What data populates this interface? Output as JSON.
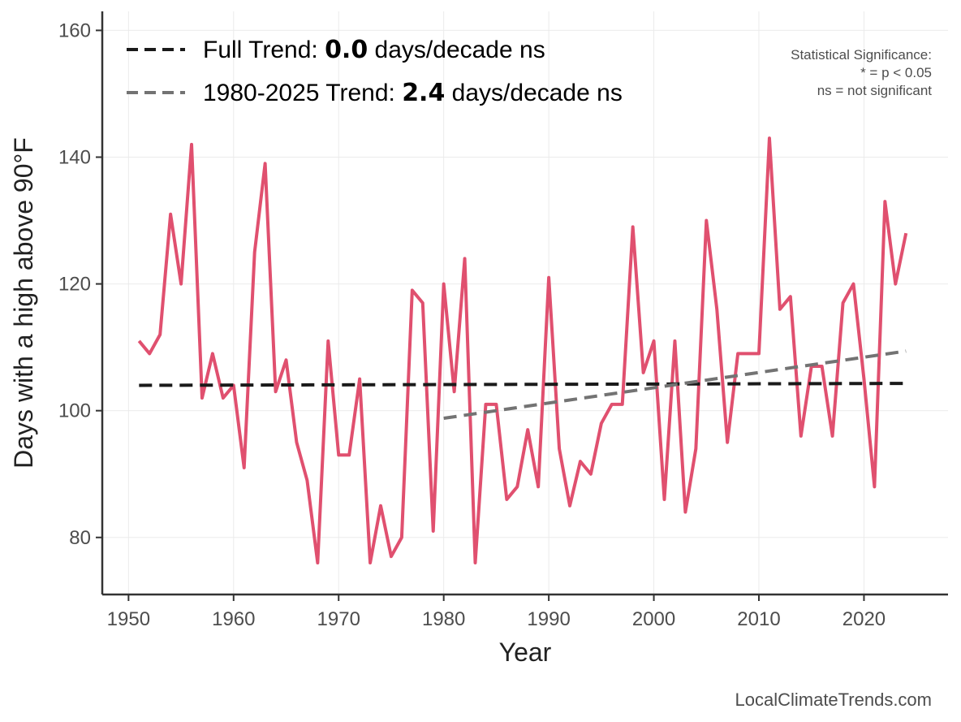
{
  "chart_data": {
    "type": "line",
    "title": "",
    "xlabel": "Year",
    "ylabel": "Days with a high above 90°F",
    "xlim": [
      1947.5,
      2028
    ],
    "ylim": [
      71,
      163
    ],
    "x_ticks": [
      1950,
      1960,
      1970,
      1980,
      1990,
      2000,
      2010,
      2020
    ],
    "y_ticks": [
      80,
      100,
      120,
      140,
      160
    ],
    "grid": true,
    "series": [
      {
        "name": "Days with a high above 90°F",
        "color": "#e0506f",
        "x": [
          1951,
          1952,
          1953,
          1954,
          1955,
          1956,
          1957,
          1958,
          1959,
          1960,
          1961,
          1962,
          1963,
          1964,
          1965,
          1966,
          1967,
          1968,
          1969,
          1970,
          1971,
          1972,
          1973,
          1974,
          1975,
          1976,
          1977,
          1978,
          1979,
          1980,
          1981,
          1982,
          1983,
          1984,
          1985,
          1986,
          1987,
          1988,
          1989,
          1990,
          1991,
          1992,
          1993,
          1994,
          1995,
          1996,
          1997,
          1998,
          1999,
          2000,
          2001,
          2002,
          2003,
          2004,
          2005,
          2006,
          2007,
          2008,
          2009,
          2010,
          2011,
          2012,
          2013,
          2014,
          2015,
          2016,
          2017,
          2018,
          2019,
          2020,
          2021,
          2022,
          2023,
          2024
        ],
        "values": [
          111,
          109,
          112,
          131,
          120,
          142,
          102,
          109,
          102,
          104,
          91,
          125,
          139,
          103,
          108,
          95,
          89,
          76,
          111,
          93,
          93,
          105,
          76,
          85,
          77,
          80,
          119,
          117,
          81,
          120,
          103,
          124,
          76,
          101,
          101,
          86,
          88,
          97,
          88,
          121,
          94,
          85,
          92,
          90,
          98,
          101,
          101,
          129,
          106,
          111,
          86,
          111,
          84,
          94,
          130,
          116,
          95,
          109,
          109,
          109,
          143,
          116,
          118,
          96,
          107,
          107,
          96,
          117,
          120,
          105,
          88,
          133,
          120,
          128
        ]
      }
    ],
    "trends": [
      {
        "name": "Full Trend",
        "color": "#1a1a1a",
        "x": [
          1951,
          2024
        ],
        "values": [
          104.0,
          104.3
        ]
      },
      {
        "name": "1980-2025 Trend",
        "color": "#737373",
        "x": [
          1980,
          2024
        ],
        "values": [
          98.8,
          109.4
        ]
      }
    ],
    "legend": {
      "position": "top-left",
      "entries": [
        {
          "prefix": "Full Trend: ",
          "value": "0.0",
          "suffix": " days/decade ns"
        },
        {
          "prefix": "1980-2025 Trend: ",
          "value": "2.4",
          "suffix": " days/decade ns"
        }
      ]
    },
    "significance_note": {
      "title": "Statistical Significance:",
      "line1": "* = p < 0.05",
      "line2": "ns = not significant"
    }
  },
  "source": "LocalClimateTrends.com"
}
